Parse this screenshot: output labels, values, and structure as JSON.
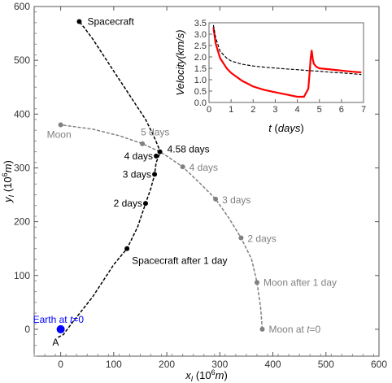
{
  "chart_data": [
    {
      "type": "line",
      "xlabel": "x_I (10^6 m)",
      "ylabel": "y_I (10^6 m)",
      "xlim": [
        -50,
        600
      ],
      "ylim": [
        -50,
        600
      ],
      "x_ticks": [
        0,
        100,
        200,
        300,
        400,
        500,
        600
      ],
      "y_ticks": [
        0,
        100,
        200,
        300,
        400,
        500,
        600
      ],
      "grid": false,
      "series": [
        {
          "name": "Spacecraft",
          "color": "#000000",
          "style": "dashed",
          "x": [
            -5,
            5,
            20,
            40,
            60,
            80,
            100,
            125,
            145,
            160,
            170,
            177,
            180,
            185,
            188,
            175,
            160,
            140,
            120,
            100,
            80,
            60,
            45,
            35
          ],
          "y": [
            -15,
            -10,
            10,
            35,
            60,
            90,
            120,
            150,
            190,
            234,
            262,
            288,
            310,
            322,
            330,
            360,
            390,
            420,
            450,
            480,
            510,
            540,
            560,
            572
          ]
        },
        {
          "name": "Moon",
          "color": "#808080",
          "style": "dashed",
          "x": [
            380,
            377,
            370,
            360,
            340,
            317,
            292,
            262,
            230,
            200,
            187,
            154,
            110,
            60,
            0
          ],
          "y": [
            0,
            40,
            87,
            130,
            170,
            207,
            242,
            272,
            302,
            322,
            330,
            345,
            360,
            372,
            380
          ]
        }
      ],
      "points": [
        {
          "x": 0,
          "y": 0,
          "label": "Earth at t=0",
          "color": "#0000ff"
        },
        {
          "x": 380,
          "y": 0,
          "label": "Moon at t=0",
          "color": "#808080"
        },
        {
          "x": 370,
          "y": 87,
          "label": "Moon after 1 day",
          "color": "#808080"
        },
        {
          "x": 340,
          "y": 170,
          "label": "2 days",
          "color": "#808080"
        },
        {
          "x": 292,
          "y": 242,
          "label": "3 days",
          "color": "#808080"
        },
        {
          "x": 230,
          "y": 302,
          "label": "4 days",
          "color": "#808080"
        },
        {
          "x": 154,
          "y": 345,
          "label": "5 days",
          "color": "#808080"
        },
        {
          "x": 0,
          "y": 380,
          "label": "Moon",
          "color": "#808080"
        },
        {
          "x": 125,
          "y": 150,
          "label": "Spacecraft after 1 day",
          "color": "#000000"
        },
        {
          "x": 160,
          "y": 234,
          "label": "2 days",
          "color": "#000000"
        },
        {
          "x": 177,
          "y": 288,
          "label": "3 days",
          "color": "#000000"
        },
        {
          "x": 180,
          "y": 322,
          "label": "4 days",
          "color": "#000000"
        },
        {
          "x": 187,
          "y": 330,
          "label": "4.58 days",
          "color": "#000000"
        },
        {
          "x": 35,
          "y": 572,
          "label": "Spacecraft",
          "color": "#000000"
        }
      ],
      "annotations": [
        {
          "text": "A",
          "x": -5,
          "y": -15
        }
      ]
    },
    {
      "type": "line",
      "inset": true,
      "xlabel": "t (days)",
      "ylabel": "Velocity(km/s)",
      "xlim": [
        0,
        7
      ],
      "ylim": [
        0,
        3.5
      ],
      "x_ticks": [
        0,
        1,
        2,
        3,
        4,
        5,
        6,
        7
      ],
      "y_ticks": [
        0.0,
        0.5,
        1.0,
        1.5,
        2.0,
        2.5,
        3.0,
        3.5
      ],
      "grid": false,
      "series": [
        {
          "color": "#ff0000",
          "style": "solid",
          "x": [
            0.2,
            0.3,
            0.5,
            0.8,
            1.0,
            1.5,
            2.0,
            2.5,
            3.0,
            3.5,
            4.0,
            4.3,
            4.5,
            4.55,
            4.6,
            4.65,
            4.7,
            4.75,
            4.85,
            5.0,
            5.5,
            6.0,
            6.5,
            6.9
          ],
          "y": [
            3.3,
            2.6,
            1.95,
            1.5,
            1.3,
            0.95,
            0.7,
            0.55,
            0.45,
            0.35,
            0.25,
            0.25,
            0.6,
            1.2,
            1.9,
            2.3,
            1.9,
            1.7,
            1.58,
            1.5,
            1.45,
            1.4,
            1.35,
            1.32
          ]
        },
        {
          "color": "#000000",
          "style": "dashed",
          "x": [
            0.2,
            0.3,
            0.5,
            0.8,
            1.0,
            1.5,
            2.0,
            2.5,
            3.0,
            3.5,
            4.0,
            4.5,
            5.0,
            5.5,
            6.0,
            6.5,
            6.9
          ],
          "y": [
            3.4,
            2.85,
            2.25,
            1.95,
            1.82,
            1.68,
            1.6,
            1.55,
            1.51,
            1.47,
            1.44,
            1.4,
            1.37,
            1.33,
            1.3,
            1.26,
            1.23
          ]
        }
      ]
    }
  ]
}
